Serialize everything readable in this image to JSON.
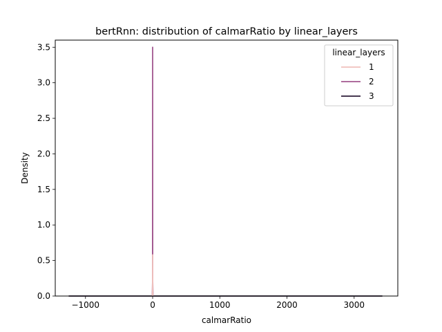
{
  "chart_data": {
    "type": "line",
    "title": "bertRnn: distribution of calmarRatio by linear_layers",
    "xlabel": "calmarRatio",
    "ylabel": "Density",
    "xlim": [
      -1450,
      3650
    ],
    "ylim": [
      0,
      3.6
    ],
    "xticks": [
      -1000,
      0,
      1000,
      2000,
      3000
    ],
    "xtick_labels": [
      "−1000",
      "0",
      "1000",
      "2000",
      "3000"
    ],
    "yticks": [
      0.0,
      0.5,
      1.0,
      1.5,
      2.0,
      2.5,
      3.0,
      3.5
    ],
    "ytick_labels": [
      "0.0",
      "0.5",
      "1.0",
      "1.5",
      "2.0",
      "2.5",
      "3.0",
      "3.5"
    ],
    "legend": {
      "title": "linear_layers",
      "placement": "top-right",
      "entries": [
        "1",
        "2",
        "3"
      ]
    },
    "series": [
      {
        "name": "1",
        "color": "#f0c0bc",
        "points": [
          [
            -5,
            0
          ],
          [
            -1.2,
            0.05
          ],
          [
            0,
            0.58
          ],
          [
            1.2,
            0.05
          ],
          [
            5,
            0
          ]
        ]
      },
      {
        "name": "2",
        "color": "#a2578f",
        "points": [
          [
            -5,
            0
          ],
          [
            -1,
            0.2
          ],
          [
            0,
            3.5
          ],
          [
            1,
            0.2
          ],
          [
            5,
            0
          ]
        ]
      },
      {
        "name": "3",
        "color": "#2b1b38",
        "points": [
          [
            -1250,
            0
          ],
          [
            0,
            0.0003
          ],
          [
            3420,
            0
          ]
        ]
      }
    ]
  }
}
